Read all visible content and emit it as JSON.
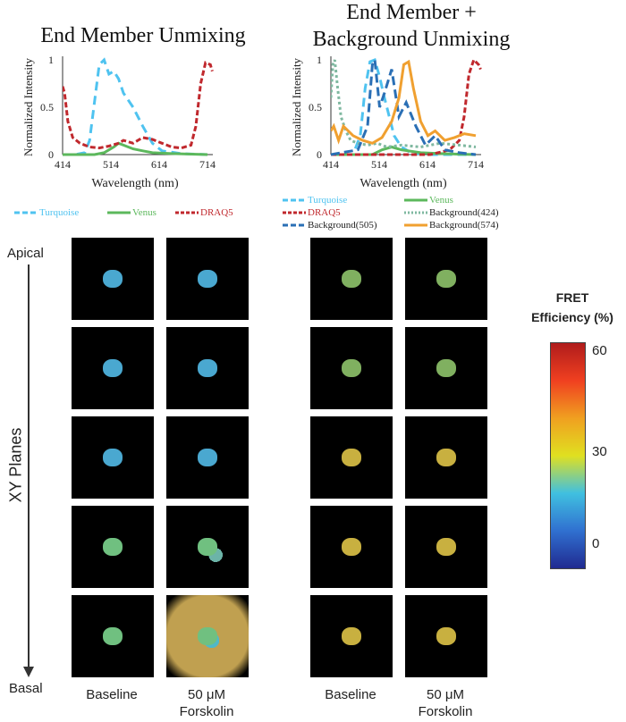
{
  "panel_left": {
    "title": "End Member Unmixing"
  },
  "panel_right": {
    "title_line1": "End Member +",
    "title_line2": "Background Unmixing"
  },
  "legend_left": [
    {
      "label": "Turquoise",
      "color": "#4fc3f0",
      "dash": "6,3"
    },
    {
      "label": "Venus",
      "color": "#5cb85c",
      "dash": ""
    },
    {
      "label": "DRAQ5",
      "color": "#c0282d",
      "dash": "4,2"
    }
  ],
  "legend_right": [
    {
      "label": "Turquoise",
      "color": "#4fc3f0",
      "dash": "6,3"
    },
    {
      "label": "Venus",
      "color": "#5cb85c",
      "dash": ""
    },
    {
      "label": "DRAQ5",
      "color": "#c0282d",
      "dash": "4,2"
    },
    {
      "label": "Background(424)",
      "color": "#7fb8a0",
      "dash": "2,2"
    },
    {
      "label": "Background(505)",
      "color": "#2a6fb5",
      "dash": "6,3"
    },
    {
      "label": "Background(574)",
      "color": "#f0a030",
      "dash": ""
    }
  ],
  "chart_data": [
    {
      "type": "line",
      "title": "End Member Unmixing",
      "xlabel": "Wavelength (nm)",
      "ylabel": "Normalized Intensity",
      "xlim": [
        414,
        714
      ],
      "ylim": [
        0,
        1
      ],
      "xticks": [
        "414",
        "514",
        "614",
        "714"
      ],
      "yticks": [
        "0",
        "0.5",
        "1"
      ],
      "grid": false,
      "series": [
        {
          "name": "Turquoise",
          "color": "#4fc3f0",
          "dash": "10,6",
          "x": [
            414,
            440,
            460,
            470,
            480,
            490,
            500,
            510,
            520,
            530,
            540,
            560,
            580,
            600,
            620,
            660,
            714
          ],
          "y": [
            0,
            0,
            0.02,
            0.15,
            0.55,
            0.95,
            1.0,
            0.85,
            0.88,
            0.8,
            0.65,
            0.5,
            0.3,
            0.12,
            0.04,
            0.01,
            0
          ]
        },
        {
          "name": "Venus",
          "color": "#5cb85c",
          "dash": "",
          "x": [
            414,
            480,
            500,
            520,
            530,
            540,
            560,
            580,
            600,
            640,
            714
          ],
          "y": [
            0,
            0,
            0.02,
            0.08,
            0.12,
            0.1,
            0.06,
            0.04,
            0.02,
            0.01,
            0
          ]
        },
        {
          "name": "DRAQ5",
          "color": "#c0282d",
          "dash": "6,3",
          "x": [
            414,
            418,
            425,
            435,
            450,
            470,
            490,
            510,
            530,
            540,
            560,
            580,
            600,
            620,
            640,
            660,
            680,
            690,
            700,
            710,
            720,
            724
          ],
          "y": [
            0.72,
            0.65,
            0.35,
            0.18,
            0.12,
            0.08,
            0.07,
            0.09,
            0.12,
            0.15,
            0.12,
            0.18,
            0.16,
            0.12,
            0.08,
            0.07,
            0.1,
            0.3,
            0.75,
            0.97,
            0.95,
            0.88
          ]
        }
      ]
    },
    {
      "type": "line",
      "title": "End Member + Background Unmixing",
      "xlabel": "Wavelength (nm)",
      "ylabel": "Normalized Intensity",
      "xlim": [
        414,
        714
      ],
      "ylim": [
        0,
        1
      ],
      "xticks": [
        "414",
        "514",
        "614",
        "714"
      ],
      "yticks": [
        "0",
        "0.5",
        "1"
      ],
      "grid": false,
      "series": [
        {
          "name": "Turquoise",
          "color": "#4fc3f0",
          "dash": "10,6",
          "x": [
            414,
            460,
            475,
            485,
            495,
            505,
            515,
            525,
            535,
            545,
            560,
            580,
            620,
            714
          ],
          "y": [
            0,
            0,
            0.2,
            0.7,
            0.98,
            1.0,
            0.82,
            0.6,
            0.4,
            0.2,
            0.08,
            0.02,
            0,
            0
          ]
        },
        {
          "name": "Venus",
          "color": "#5cb85c",
          "dash": "",
          "x": [
            414,
            500,
            520,
            540,
            560,
            600,
            640,
            714
          ],
          "y": [
            0,
            0,
            0.05,
            0.08,
            0.05,
            0.02,
            0.01,
            0
          ]
        },
        {
          "name": "DRAQ5",
          "color": "#c0282d",
          "dash": "6,3",
          "x": [
            414,
            620,
            660,
            680,
            690,
            700,
            710,
            720,
            724
          ],
          "y": [
            0,
            0,
            0.05,
            0.15,
            0.4,
            0.85,
            1.0,
            0.95,
            0.9
          ]
        },
        {
          "name": "Background(424)",
          "color": "#7fb8a0",
          "dash": "3,3",
          "x": [
            414,
            418,
            422,
            428,
            435,
            445,
            455,
            470,
            490,
            510,
            530,
            560,
            600,
            640,
            680,
            714
          ],
          "y": [
            0.6,
            0.95,
            1.0,
            0.7,
            0.4,
            0.25,
            0.15,
            0.12,
            0.1,
            0.12,
            0.08,
            0.1,
            0.08,
            0.12,
            0.1,
            0.08
          ]
        },
        {
          "name": "Background(505)",
          "color": "#2a6fb5",
          "dash": "10,5",
          "x": [
            414,
            470,
            490,
            500,
            505,
            515,
            525,
            540,
            555,
            570,
            590,
            610,
            630,
            650,
            680,
            714
          ],
          "y": [
            0,
            0.05,
            0.3,
            0.95,
            1.0,
            0.5,
            0.65,
            0.9,
            0.4,
            0.55,
            0.3,
            0.1,
            0.2,
            0.05,
            0.02,
            0
          ]
        },
        {
          "name": "Background(574)",
          "color": "#f0a030",
          "dash": "",
          "x": [
            414,
            420,
            430,
            440,
            460,
            480,
            500,
            520,
            540,
            555,
            565,
            575,
            585,
            600,
            615,
            630,
            650,
            670,
            690,
            714
          ],
          "y": [
            0.25,
            0.3,
            0.15,
            0.3,
            0.2,
            0.15,
            0.12,
            0.18,
            0.35,
            0.6,
            0.95,
            0.98,
            0.7,
            0.35,
            0.2,
            0.25,
            0.15,
            0.18,
            0.22,
            0.2
          ]
        }
      ]
    }
  ],
  "side_labels": {
    "apical": "Apical",
    "xy_planes": "XY Planes",
    "basal": "Basal"
  },
  "columns": [
    {
      "line1": "Baseline",
      "line2": ""
    },
    {
      "line1": "50 μM",
      "line2": "Forskolin"
    },
    {
      "line1": "Baseline",
      "line2": ""
    },
    {
      "line1": "50 μM",
      "line2": "Forskolin"
    }
  ],
  "colorbar": {
    "title_line1": "FRET",
    "title_line2": "Efficiency (%)",
    "ticks": [
      "60",
      "30",
      "0"
    ],
    "colors": [
      "#b01c1c",
      "#f04020",
      "#f0a020",
      "#e0e020",
      "#40c0e0",
      "#3070d0",
      "#202a90"
    ]
  }
}
